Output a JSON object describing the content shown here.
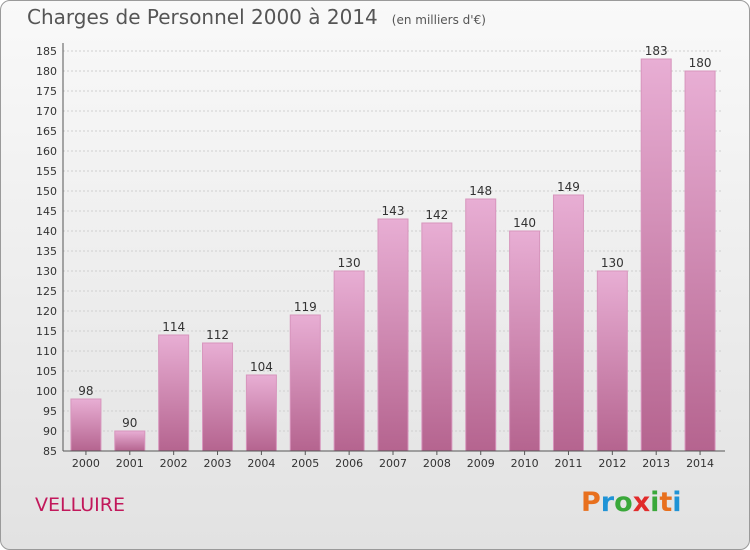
{
  "title": "Charges de Personnel 2000 à 2014",
  "unit": "(en milliers d'€)",
  "commune": "VELLUIRE",
  "brand": {
    "letters": [
      "P",
      "r",
      "o",
      "x",
      "i",
      "t",
      "i"
    ],
    "colors": [
      "#e8701e",
      "#1f93d6",
      "#3aa83a",
      "#e12b2b",
      "#3aa83a",
      "#e8701e",
      "#1f93d6"
    ]
  },
  "colors": {
    "bar_light": "#e8aed4",
    "bar_dark": "#b5648f"
  },
  "chart_data": {
    "type": "bar",
    "title": "Charges de Personnel 2000 à 2014",
    "subtitle": "(en milliers d'€)",
    "xlabel": "",
    "ylabel": "",
    "categories": [
      "2000",
      "2001",
      "2002",
      "2003",
      "2004",
      "2005",
      "2006",
      "2007",
      "2008",
      "2009",
      "2010",
      "2011",
      "2012",
      "2013",
      "2014"
    ],
    "values": [
      98,
      90,
      114,
      112,
      104,
      119,
      130,
      143,
      142,
      148,
      140,
      149,
      130,
      183,
      180
    ],
    "ylim": [
      85,
      185
    ],
    "ytick_step": 5,
    "grid": true
  }
}
